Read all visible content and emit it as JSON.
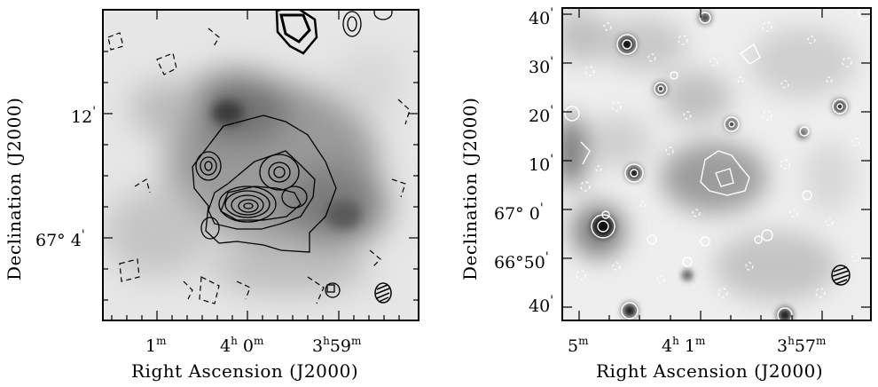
{
  "left_panel": {
    "xlabel": "Right Ascension (J2000)",
    "ylabel": "Declination (J2000)",
    "x_ticks": [
      {
        "main": "1",
        "unit": "m"
      },
      {
        "main": "4",
        "unit": "h",
        "main2": " 0",
        "unit2": "m"
      },
      {
        "main": "3",
        "unit": "h",
        "main2": "59",
        "unit2": "m"
      }
    ],
    "y_ticks": [
      {
        "main": "12",
        "unit": "'"
      },
      {
        "main": "67° 4",
        "unit": "'"
      }
    ]
  },
  "right_panel": {
    "xlabel": "Right Ascension (J2000)",
    "ylabel": "Declination (J2000)",
    "x_ticks": [
      {
        "main": "5",
        "unit": "m"
      },
      {
        "main": "4",
        "unit": "h",
        "main2": " 1",
        "unit2": "m"
      },
      {
        "main": "3",
        "unit": "h",
        "main2": "57",
        "unit2": "m"
      }
    ],
    "y_ticks": [
      {
        "main": "40",
        "unit": "'"
      },
      {
        "main": "30",
        "unit": "'"
      },
      {
        "main": "20",
        "unit": "'"
      },
      {
        "main": "10",
        "unit": "'"
      },
      {
        "main": "67° 0",
        "unit": "'"
      },
      {
        "main": "66°50",
        "unit": "'"
      },
      {
        "main": "40",
        "unit": "'"
      }
    ]
  },
  "colors": {
    "frame": "#000000",
    "contour_left": "#000000",
    "contour_right": "#ffffff"
  }
}
